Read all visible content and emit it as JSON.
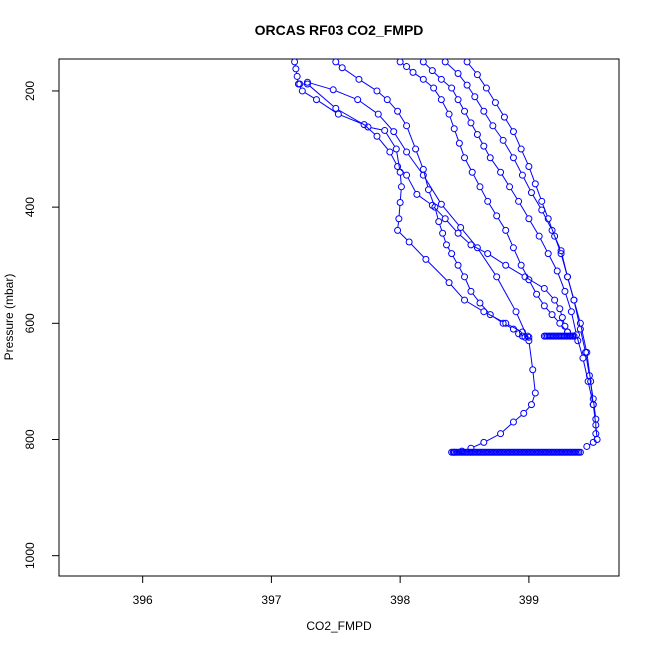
{
  "chart_data": {
    "type": "line",
    "title": "ORCAS RF03 CO2_FMPD",
    "xlabel": "CO2_FMPD",
    "ylabel": "Pressure (mbar)",
    "xlim": [
      395.35,
      399.7
    ],
    "ylim": [
      1035,
      145
    ],
    "y_reversed": true,
    "xticks": [
      "396",
      "397",
      "398",
      "399"
    ],
    "xtick_values": [
      396,
      397,
      398,
      399
    ],
    "yticks": [
      "200",
      "400",
      "600",
      "800",
      "1000"
    ],
    "ytick_values": [
      200,
      400,
      600,
      800,
      1000
    ],
    "grid": false,
    "legend": "none",
    "marker": "open-circle",
    "line_style": "connected points",
    "color": "#0000ff",
    "series": [
      {
        "x": [
          397.18,
          397.19,
          397.2,
          397.21,
          397.24,
          397.35,
          397.52,
          397.72,
          397.82,
          397.92,
          397.98,
          398.05,
          398.13,
          398.25,
          398.35,
          398.45,
          398.55,
          398.68,
          398.82,
          398.97,
          399.12,
          399.2,
          399.24,
          399.26,
          399.28,
          399.3,
          399.32
        ],
        "y": [
          150,
          162,
          175,
          188,
          200,
          215,
          240,
          258,
          278,
          305,
          330,
          345,
          378,
          397,
          420,
          445,
          465,
          480,
          500,
          520,
          540,
          560,
          575,
          590,
          605,
          615,
          622
        ]
      },
      {
        "x": [
          397.22,
          397.28,
          397.5,
          397.75,
          397.88,
          397.97,
          398.0,
          398.01,
          398.0,
          397.99,
          397.98,
          398.07,
          398.2,
          398.38,
          398.5,
          398.65,
          398.82,
          398.95,
          398.99,
          399.0
        ],
        "y": [
          188,
          188,
          230,
          262,
          268,
          300,
          340,
          365,
          392,
          420,
          440,
          460,
          490,
          530,
          560,
          580,
          600,
          615,
          622,
          624
        ]
      },
      {
        "x": [
          397.28,
          397.48,
          397.67,
          397.83,
          397.95,
          398.05,
          398.18,
          398.32,
          398.47,
          398.6,
          398.75,
          398.9,
          399.0,
          399.03,
          399.05,
          399.02,
          398.96,
          398.88,
          398.78,
          398.65,
          398.55,
          398.48,
          398.42
        ],
        "y": [
          185,
          198,
          215,
          240,
          270,
          305,
          345,
          395,
          435,
          470,
          520,
          580,
          630,
          680,
          720,
          740,
          755,
          770,
          790,
          805,
          815,
          820,
          822
        ]
      },
      {
        "x": [
          397.5,
          397.55,
          397.68,
          397.82,
          397.9,
          397.98,
          398.05,
          398.12,
          398.18,
          398.22,
          398.27,
          398.3,
          398.33,
          398.36,
          398.4,
          398.45,
          398.5,
          398.55,
          398.62,
          398.7,
          398.8,
          398.88,
          398.92,
          398.95,
          398.97
        ],
        "y": [
          150,
          160,
          180,
          200,
          215,
          235,
          260,
          300,
          335,
          370,
          400,
          425,
          445,
          465,
          480,
          500,
          520,
          545,
          565,
          585,
          600,
          610,
          618,
          622,
          624
        ]
      },
      {
        "x": [
          398.0,
          398.05,
          398.1,
          398.18,
          398.26,
          398.32,
          398.38,
          398.42,
          398.46,
          398.5,
          398.56,
          398.62,
          398.68,
          398.75,
          398.82,
          398.88,
          398.94,
          399.0,
          399.06,
          399.12,
          399.18,
          399.24,
          399.3,
          399.34,
          399.38
        ],
        "y": [
          150,
          158,
          168,
          180,
          195,
          215,
          240,
          265,
          290,
          315,
          340,
          365,
          390,
          415,
          440,
          470,
          500,
          525,
          550,
          570,
          585,
          600,
          615,
          622,
          630
        ]
      },
      {
        "x": [
          398.18,
          398.25,
          398.32,
          398.4,
          398.45,
          398.5,
          398.55,
          398.6,
          398.65,
          398.7,
          398.78,
          398.85,
          398.92,
          399.0,
          399.08,
          399.15,
          399.22,
          399.28,
          399.33,
          399.37,
          399.42,
          399.46,
          399.5,
          399.52,
          399.53
        ],
        "y": [
          150,
          165,
          180,
          195,
          215,
          235,
          255,
          275,
          295,
          315,
          340,
          365,
          390,
          420,
          450,
          480,
          510,
          545,
          580,
          620,
          660,
          700,
          740,
          775,
          800
        ]
      },
      {
        "x": [
          398.35,
          398.45,
          398.52,
          398.58,
          398.65,
          398.72,
          398.8,
          398.88,
          398.95,
          399.02,
          399.1,
          399.18,
          399.25,
          399.3,
          399.35,
          399.4,
          399.44,
          399.47,
          399.5,
          399.52,
          399.52,
          399.5,
          399.45
        ],
        "y": [
          150,
          170,
          190,
          210,
          235,
          260,
          285,
          315,
          345,
          375,
          405,
          440,
          475,
          520,
          560,
          610,
          650,
          690,
          730,
          765,
          790,
          805,
          812
        ]
      },
      {
        "x": [
          398.52,
          398.6,
          398.67,
          398.74,
          398.81,
          398.88,
          398.94,
          399.0,
          399.05,
          399.1,
          399.15,
          399.2,
          399.25,
          399.3,
          399.35,
          399.4,
          399.45,
          399.48,
          399.5
        ],
        "y": [
          150,
          172,
          195,
          220,
          245,
          270,
          300,
          330,
          360,
          390,
          420,
          450,
          480,
          520,
          560,
          600,
          650,
          700,
          740
        ]
      }
    ],
    "flat_segments": [
      {
        "y": 622,
        "x_from": 399.12,
        "x_to": 399.35
      },
      {
        "y": 822,
        "x_from": 398.4,
        "x_to": 399.4
      }
    ]
  }
}
